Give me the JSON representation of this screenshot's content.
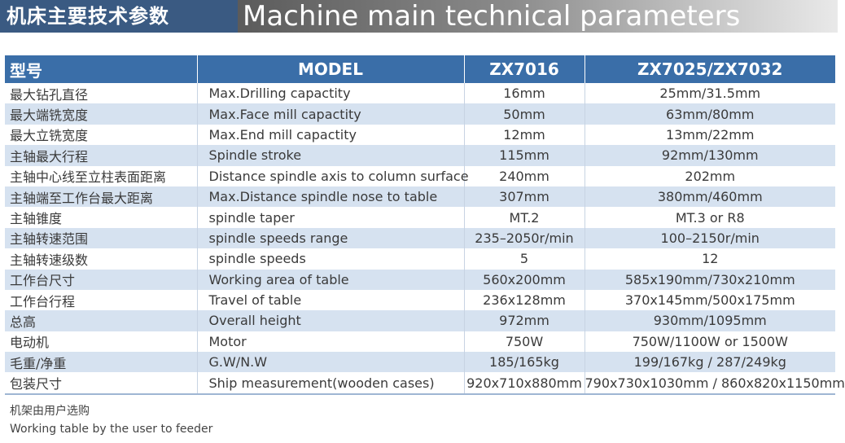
{
  "banner": {
    "title_cn": "机床主要技术参数",
    "title_en": "Machine main technical parameters"
  },
  "table": {
    "headers": [
      "型号",
      "MODEL",
      "ZX7016",
      "ZX7025/ZX7032"
    ],
    "rows": [
      [
        "最大钻孔直径",
        "Max.Drilling capactity",
        "16mm",
        "25mm/31.5mm"
      ],
      [
        "最大端铣宽度",
        "Max.Face mill  capactity",
        "50mm",
        "63mm/80mm"
      ],
      [
        "最大立铣宽度",
        "Max.End mill capactity",
        "12mm",
        "13mm/22mm"
      ],
      [
        "主轴最大行程",
        "Spindle stroke",
        "115mm",
        "92mm/130mm"
      ],
      [
        "主轴中心线至立柱表面距离",
        "Distance spindle axis to column surface",
        "240mm",
        "202mm"
      ],
      [
        "主轴端至工作台最大距离",
        "Max.Distance spindle nose to table",
        "307mm",
        "380mm/460mm"
      ],
      [
        "主轴锥度",
        "spindle taper",
        "MT.2",
        "MT.3 or R8"
      ],
      [
        "主轴转速范围",
        "spindle speeds range",
        "235–2050r/min",
        "100–2150r/min"
      ],
      [
        "主轴转速级数",
        "spindle speeds",
        "5",
        "12"
      ],
      [
        "工作台尺寸",
        "Working area of table",
        "560x200mm",
        "585x190mm/730x210mm"
      ],
      [
        "工作台行程",
        "Travel of table",
        "236x128mm",
        "370x145mm/500x175mm"
      ],
      [
        "总高",
        "Overall height",
        "972mm",
        "930mm/1095mm"
      ],
      [
        "电动机",
        "Motor",
        "750W",
        "750W/1100W or 1500W"
      ],
      [
        "毛重/净重",
        "G.W/N.W",
        "185/165kg",
        "199/167kg / 287/249kg"
      ],
      [
        "包装尺寸",
        "Ship measurement(wooden cases)",
        "920x710x880mm",
        "790x730x1030mm / 860x820x1150mm"
      ]
    ]
  },
  "notes": {
    "cn": "机架由用户选购",
    "en": "Working table by the user to feeder"
  }
}
